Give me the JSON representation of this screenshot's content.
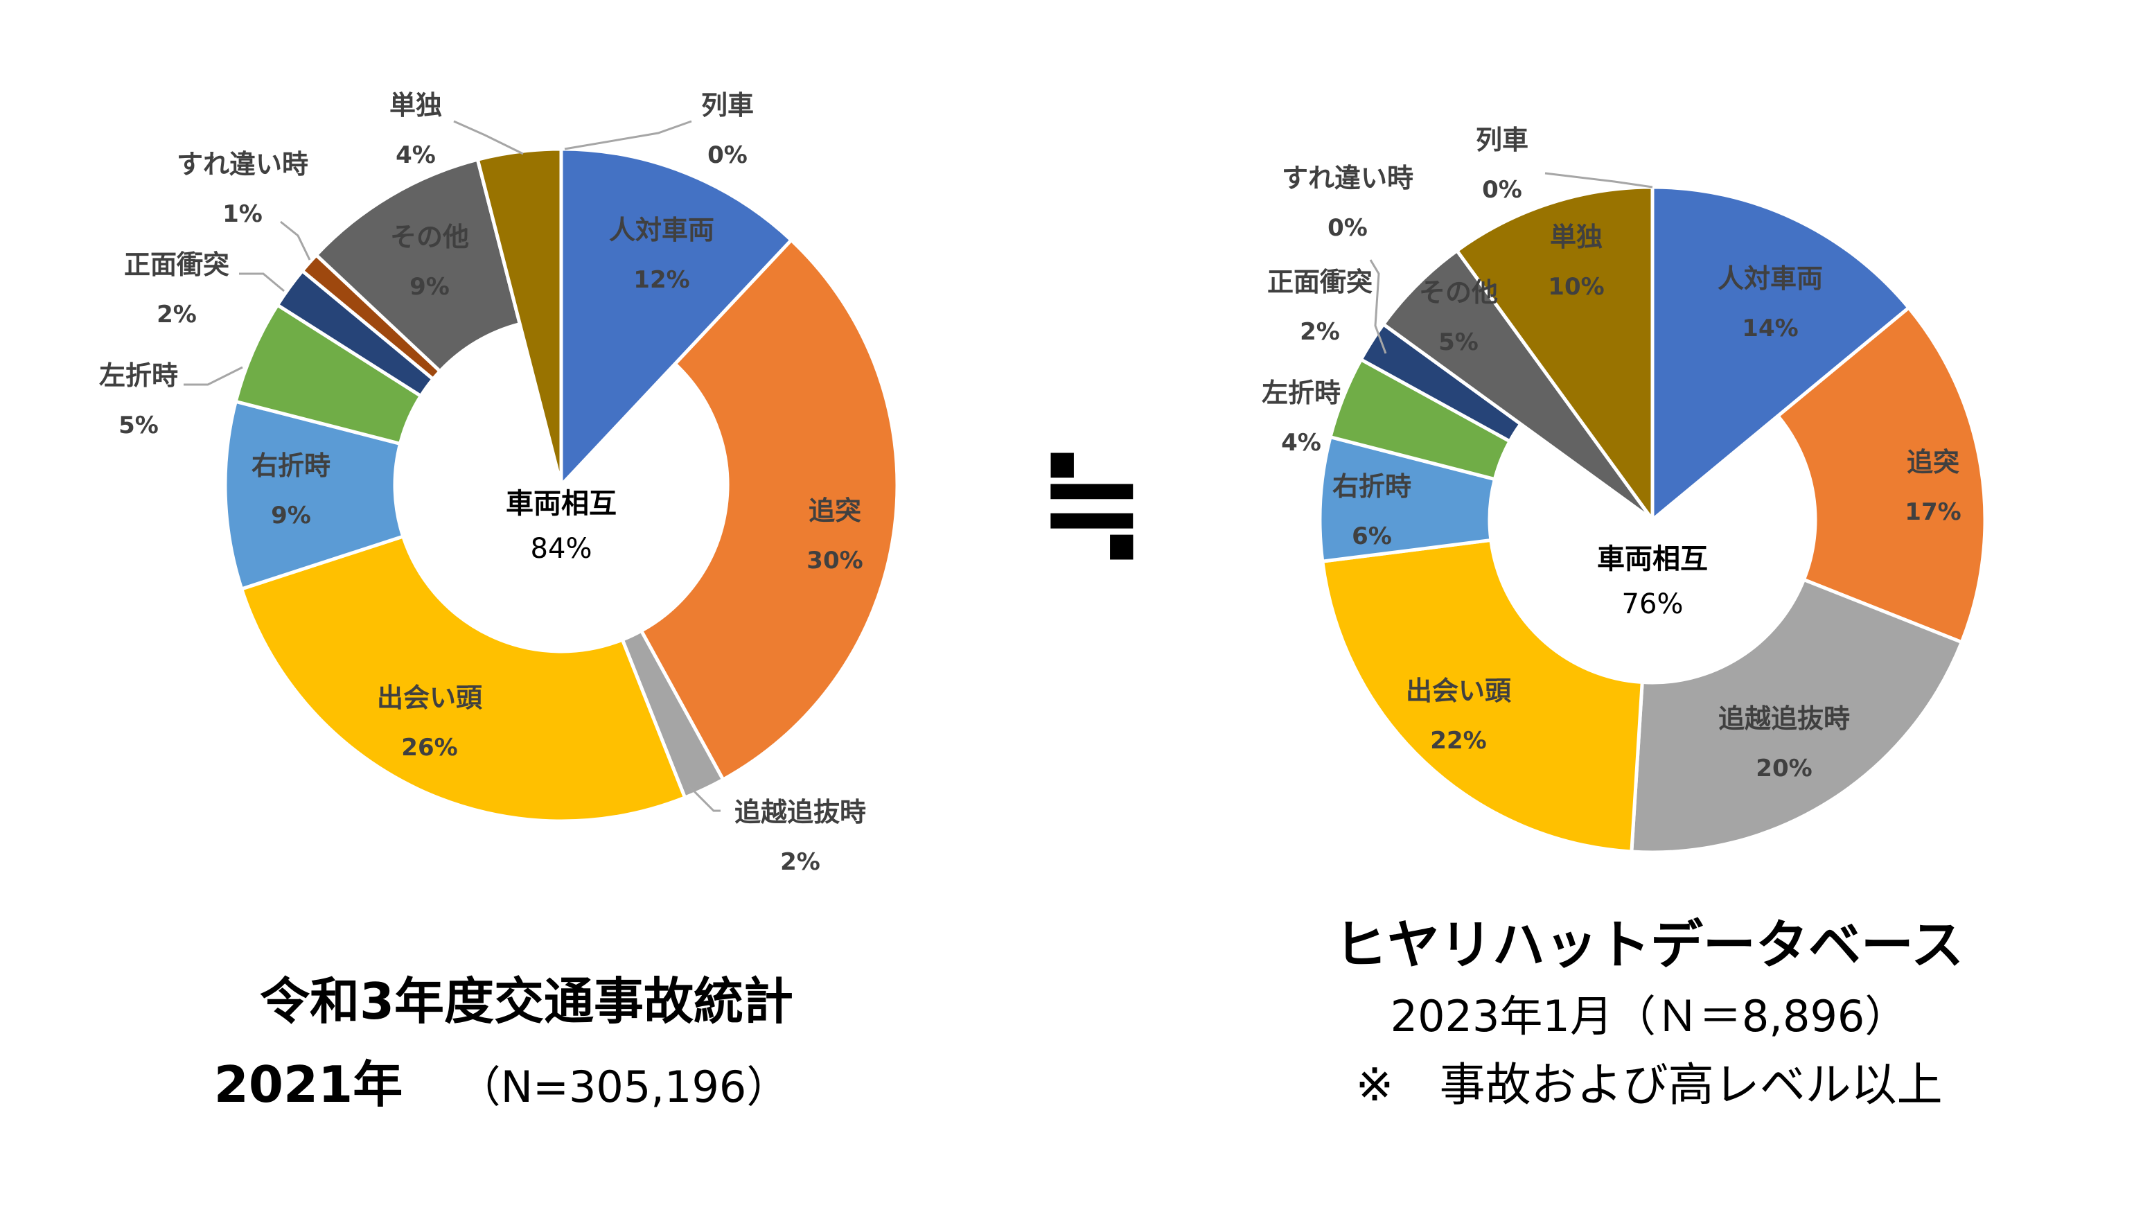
{
  "chart_data": [
    {
      "type": "pie",
      "subtype": "donut",
      "center_label": "車両相互",
      "center_value": "84%",
      "title": "令和3年度交通事故統計",
      "subtitle_bold": "2021年",
      "subtitle_note": "（N=305,196）",
      "slices": [
        {
          "name": "人対車両",
          "value": 12,
          "label": "12%",
          "color": "#4472C4"
        },
        {
          "name": "追突",
          "value": 30,
          "label": "30%",
          "color": "#ED7D31"
        },
        {
          "name": "追越追抜時",
          "value": 2,
          "label": "2%",
          "color": "#A5A5A5"
        },
        {
          "name": "出会い頭",
          "value": 26,
          "label": "26%",
          "color": "#FFC000"
        },
        {
          "name": "右折時",
          "value": 9,
          "label": "9%",
          "color": "#5B9BD5"
        },
        {
          "name": "左折時",
          "value": 5,
          "label": "5%",
          "color": "#70AD47"
        },
        {
          "name": "正面衝突",
          "value": 2,
          "label": "2%",
          "color": "#264478"
        },
        {
          "name": "すれ違い時",
          "value": 1,
          "label": "1%",
          "color": "#9E480E"
        },
        {
          "name": "その他",
          "value": 9,
          "label": "9%",
          "color": "#636363"
        },
        {
          "name": "単独",
          "value": 4,
          "label": "4%",
          "color": "#997300"
        },
        {
          "name": "列車",
          "value": 0,
          "label": "0%",
          "color": "#264478"
        }
      ]
    },
    {
      "type": "pie",
      "subtype": "donut",
      "center_label": "車両相互",
      "center_value": "76%",
      "title": "ヒヤリハットデータベース",
      "subtitle_line1": "2023年1月（Ｎ＝8,896）",
      "subtitle_line2": "※　事故および高レベル以上",
      "slices": [
        {
          "name": "人対車両",
          "value": 14,
          "label": "14%",
          "color": "#4472C4"
        },
        {
          "name": "追突",
          "value": 17,
          "label": "17%",
          "color": "#ED7D31"
        },
        {
          "name": "追越追抜時",
          "value": 20,
          "label": "20%",
          "color": "#A5A5A5"
        },
        {
          "name": "出会い頭",
          "value": 22,
          "label": "22%",
          "color": "#FFC000"
        },
        {
          "name": "右折時",
          "value": 6,
          "label": "6%",
          "color": "#5B9BD5"
        },
        {
          "name": "左折時",
          "value": 4,
          "label": "4%",
          "color": "#70AD47"
        },
        {
          "name": "正面衝突",
          "value": 2,
          "label": "2%",
          "color": "#264478"
        },
        {
          "name": "すれ違い時",
          "value": 0,
          "label": "0%",
          "color": "#9E480E"
        },
        {
          "name": "その他",
          "value": 5,
          "label": "5%",
          "color": "#636363"
        },
        {
          "name": "単独",
          "value": 10,
          "label": "10%",
          "color": "#997300"
        },
        {
          "name": "列車",
          "value": 0,
          "label": "0%",
          "color": "#264478"
        }
      ]
    }
  ],
  "comparison_symbol": "≒"
}
